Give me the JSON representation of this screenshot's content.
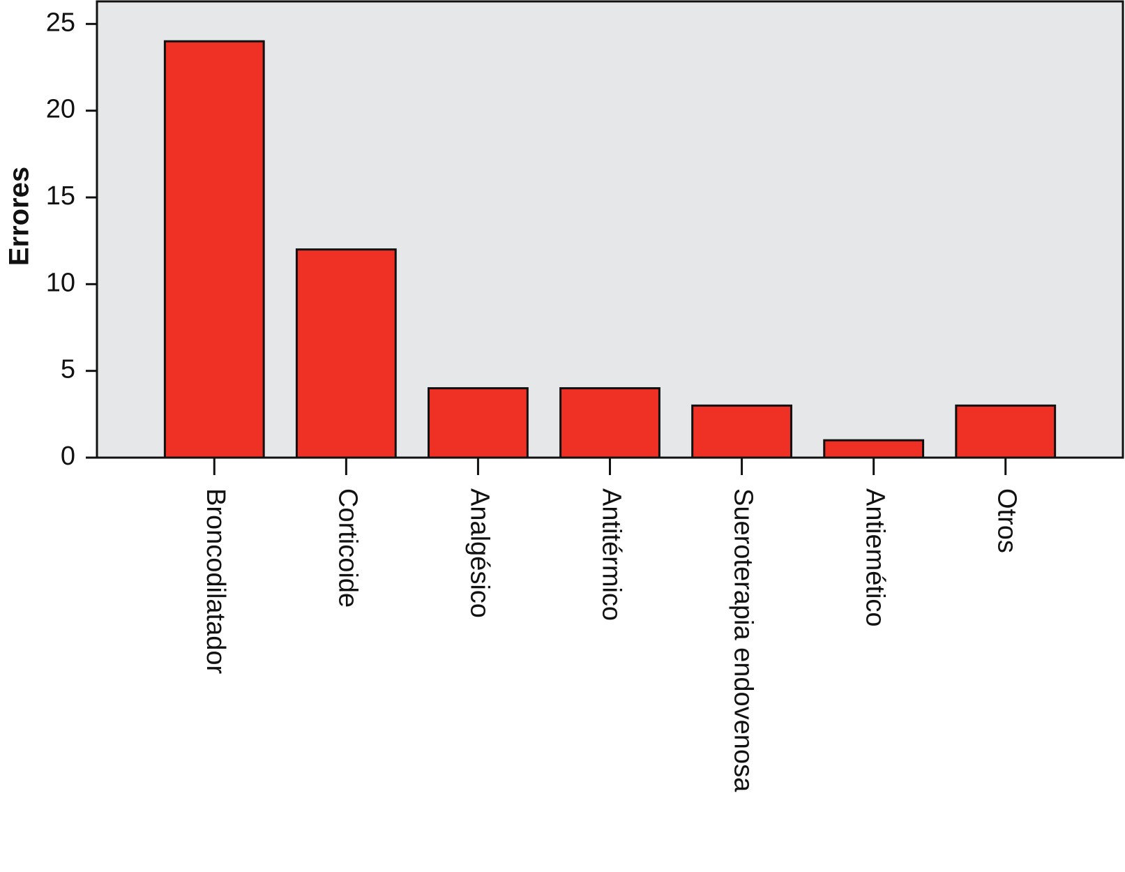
{
  "chart_data": {
    "type": "bar",
    "y_label": "Errores",
    "categories": [
      "Broncodilatador",
      "Corticoide",
      "Analgésico",
      "Antitérmico",
      "Sueroterapia endovenosa",
      "Antiemético",
      "Otros"
    ],
    "values": [
      24,
      12,
      4,
      4,
      3,
      1,
      3
    ],
    "color": "#ee3124",
    "background": "#e6e7e8",
    "ylim": [
      0,
      26.3
    ],
    "yticks": [
      0,
      5,
      10,
      15,
      20,
      25
    ]
  }
}
